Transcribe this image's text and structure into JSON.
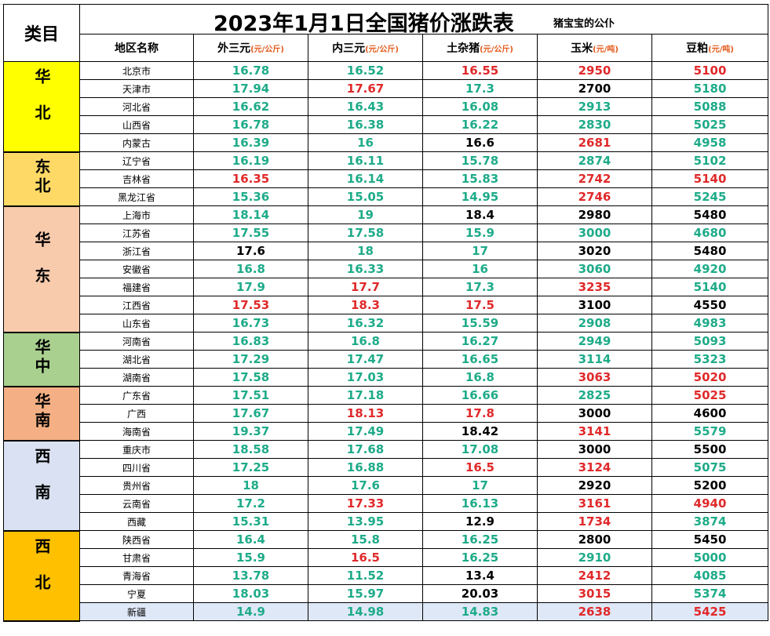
{
  "title": "2023年1月1日全国猪价涨跌表",
  "author": "猪宝宝的公仆",
  "category_header": "类目",
  "columns": [
    {
      "label": "地区名称",
      "unit": ""
    },
    {
      "label": "外三元",
      "unit": "(元/公斤)"
    },
    {
      "label": "内三元",
      "unit": "(元/公斤)"
    },
    {
      "label": "土杂猪",
      "unit": "(元/公斤)"
    },
    {
      "label": "玉米",
      "unit": "(元/吨)"
    },
    {
      "label": "豆粕",
      "unit": "(元/吨)"
    }
  ],
  "colors": {
    "up": "#e0292a",
    "down": "#1eab89",
    "flat": "#000000"
  },
  "regions": [
    {
      "name": "华北",
      "color": "#ffff00",
      "rows": [
        {
          "area": "北京市",
          "v": [
            "16.78",
            "16.52",
            "16.55",
            "2950",
            "5100"
          ],
          "c": [
            "g",
            "g",
            "r",
            "r",
            "r"
          ]
        },
        {
          "area": "天津市",
          "v": [
            "17.94",
            "17.67",
            "17.3",
            "2700",
            "5180"
          ],
          "c": [
            "g",
            "r",
            "g",
            "k",
            "g"
          ]
        },
        {
          "area": "河北省",
          "v": [
            "16.62",
            "16.43",
            "16.08",
            "2913",
            "5088"
          ],
          "c": [
            "g",
            "g",
            "g",
            "g",
            "g"
          ]
        },
        {
          "area": "山西省",
          "v": [
            "16.78",
            "16.38",
            "16.22",
            "2830",
            "5025"
          ],
          "c": [
            "g",
            "g",
            "g",
            "g",
            "g"
          ]
        },
        {
          "area": "内蒙古",
          "v": [
            "16.39",
            "16",
            "16.6",
            "2681",
            "4958"
          ],
          "c": [
            "g",
            "g",
            "k",
            "r",
            "g"
          ]
        }
      ]
    },
    {
      "name": "东北",
      "color": "#ffd966",
      "rows": [
        {
          "area": "辽宁省",
          "v": [
            "16.19",
            "16.11",
            "15.78",
            "2874",
            "5102"
          ],
          "c": [
            "g",
            "g",
            "g",
            "g",
            "g"
          ]
        },
        {
          "area": "吉林省",
          "v": [
            "16.35",
            "16.14",
            "15.83",
            "2742",
            "5140"
          ],
          "c": [
            "r",
            "g",
            "g",
            "r",
            "r"
          ]
        },
        {
          "area": "黑龙江省",
          "v": [
            "15.36",
            "15.05",
            "14.95",
            "2746",
            "5245"
          ],
          "c": [
            "g",
            "g",
            "g",
            "r",
            "g"
          ]
        }
      ]
    },
    {
      "name": "华东",
      "color": "#f8cbad",
      "rows": [
        {
          "area": "上海市",
          "v": [
            "18.14",
            "19",
            "18.4",
            "2980",
            "5480"
          ],
          "c": [
            "g",
            "g",
            "k",
            "k",
            "k"
          ]
        },
        {
          "area": "江苏省",
          "v": [
            "17.55",
            "17.58",
            "15.9",
            "3000",
            "4680"
          ],
          "c": [
            "g",
            "g",
            "g",
            "g",
            "g"
          ]
        },
        {
          "area": "浙江省",
          "v": [
            "17.6",
            "18",
            "17",
            "3020",
            "5480"
          ],
          "c": [
            "k",
            "g",
            "g",
            "k",
            "k"
          ]
        },
        {
          "area": "安徽省",
          "v": [
            "16.8",
            "16.33",
            "16",
            "3060",
            "4920"
          ],
          "c": [
            "g",
            "g",
            "g",
            "g",
            "g"
          ]
        },
        {
          "area": "福建省",
          "v": [
            "17.9",
            "17.7",
            "17.3",
            "3235",
            "5140"
          ],
          "c": [
            "g",
            "r",
            "g",
            "r",
            "g"
          ]
        },
        {
          "area": "江西省",
          "v": [
            "17.53",
            "18.3",
            "17.5",
            "3100",
            "4550"
          ],
          "c": [
            "r",
            "r",
            "r",
            "k",
            "k"
          ]
        },
        {
          "area": "山东省",
          "v": [
            "16.73",
            "16.32",
            "15.59",
            "2908",
            "4983"
          ],
          "c": [
            "g",
            "g",
            "g",
            "g",
            "g"
          ]
        }
      ]
    },
    {
      "name": "华中",
      "color": "#a9d08e",
      "rows": [
        {
          "area": "河南省",
          "v": [
            "16.83",
            "16.8",
            "16.27",
            "2949",
            "5093"
          ],
          "c": [
            "g",
            "g",
            "g",
            "g",
            "g"
          ]
        },
        {
          "area": "湖北省",
          "v": [
            "17.29",
            "17.47",
            "16.65",
            "3114",
            "5323"
          ],
          "c": [
            "g",
            "g",
            "g",
            "g",
            "g"
          ]
        },
        {
          "area": "湖南省",
          "v": [
            "17.58",
            "17.03",
            "16.8",
            "3063",
            "5020"
          ],
          "c": [
            "g",
            "g",
            "g",
            "r",
            "r"
          ]
        }
      ]
    },
    {
      "name": "华南",
      "color": "#f4b084",
      "rows": [
        {
          "area": "广东省",
          "v": [
            "17.51",
            "17.18",
            "16.66",
            "2825",
            "5025"
          ],
          "c": [
            "g",
            "g",
            "g",
            "g",
            "r"
          ]
        },
        {
          "area": "广西",
          "v": [
            "17.67",
            "18.13",
            "17.8",
            "3000",
            "4600"
          ],
          "c": [
            "g",
            "r",
            "r",
            "k",
            "k"
          ]
        },
        {
          "area": "海南省",
          "v": [
            "19.37",
            "17.49",
            "18.42",
            "3141",
            "5579"
          ],
          "c": [
            "g",
            "g",
            "k",
            "r",
            "g"
          ]
        }
      ]
    },
    {
      "name": "西南",
      "color": "#d9e1f2",
      "rows": [
        {
          "area": "重庆市",
          "v": [
            "18.58",
            "17.68",
            "17.08",
            "3000",
            "5500"
          ],
          "c": [
            "g",
            "g",
            "g",
            "k",
            "k"
          ]
        },
        {
          "area": "四川省",
          "v": [
            "17.25",
            "16.88",
            "16.5",
            "3124",
            "5075"
          ],
          "c": [
            "g",
            "g",
            "r",
            "r",
            "g"
          ]
        },
        {
          "area": "贵州省",
          "v": [
            "18",
            "17.6",
            "17",
            "2920",
            "5200"
          ],
          "c": [
            "g",
            "g",
            "g",
            "k",
            "k"
          ]
        },
        {
          "area": "云南省",
          "v": [
            "17.2",
            "17.33",
            "16.13",
            "3161",
            "4940"
          ],
          "c": [
            "g",
            "r",
            "g",
            "r",
            "r"
          ]
        },
        {
          "area": "西藏",
          "v": [
            "15.31",
            "13.95",
            "12.9",
            "1734",
            "3874"
          ],
          "c": [
            "g",
            "g",
            "k",
            "r",
            "g"
          ]
        }
      ]
    },
    {
      "name": "西北",
      "color": "#ffc000",
      "rows": [
        {
          "area": "陕西省",
          "v": [
            "16.4",
            "15.8",
            "16.25",
            "2800",
            "5450"
          ],
          "c": [
            "g",
            "g",
            "g",
            "k",
            "k"
          ]
        },
        {
          "area": "甘肃省",
          "v": [
            "15.9",
            "16.5",
            "16.25",
            "2910",
            "5000"
          ],
          "c": [
            "g",
            "r",
            "g",
            "g",
            "g"
          ]
        },
        {
          "area": "青海省",
          "v": [
            "13.78",
            "11.52",
            "13.4",
            "2412",
            "4085"
          ],
          "c": [
            "g",
            "g",
            "k",
            "r",
            "g"
          ]
        },
        {
          "area": "宁夏",
          "v": [
            "18.03",
            "15.97",
            "20.03",
            "3015",
            "5374"
          ],
          "c": [
            "g",
            "g",
            "k",
            "r",
            "g"
          ]
        },
        {
          "area": "新疆",
          "v": [
            "14.9",
            "14.98",
            "14.83",
            "2638",
            "5425"
          ],
          "c": [
            "g",
            "g",
            "g",
            "r",
            "r"
          ]
        }
      ]
    }
  ]
}
